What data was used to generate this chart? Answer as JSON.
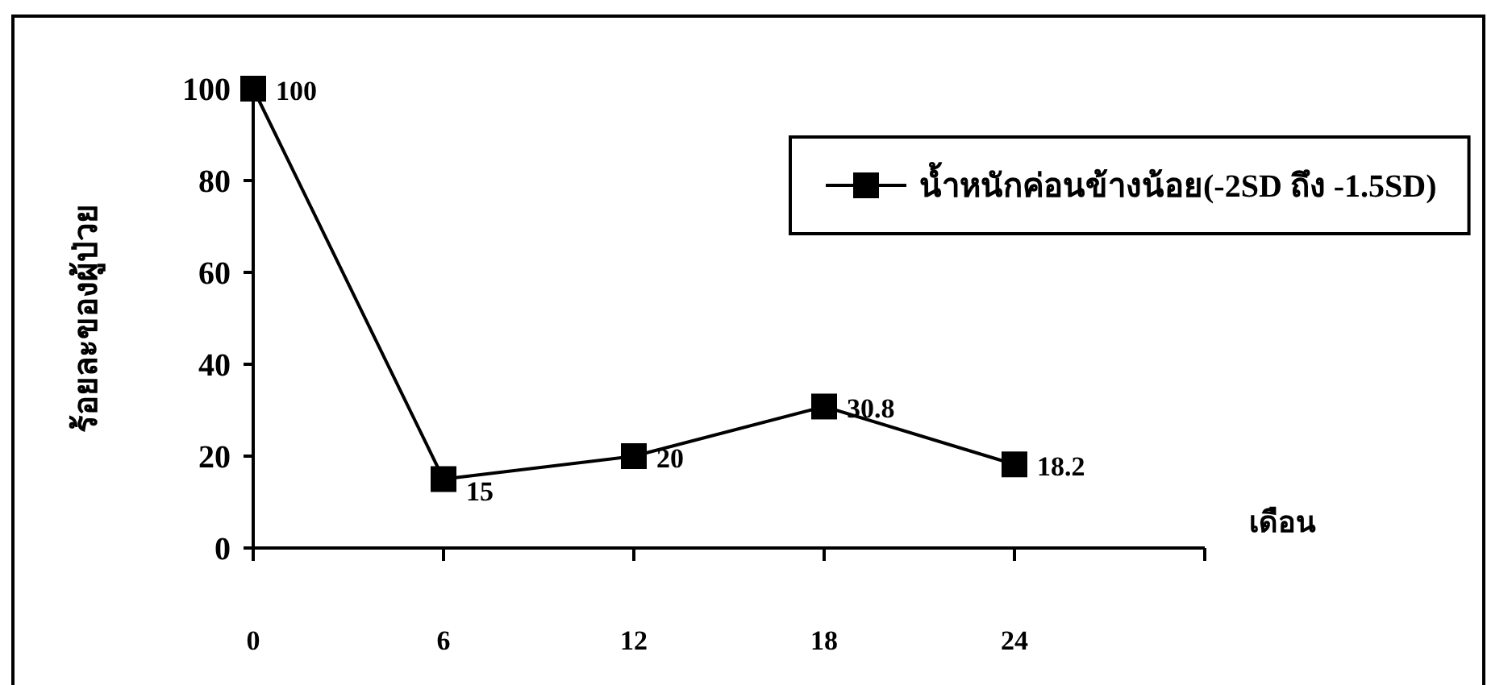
{
  "chart_data": {
    "type": "line",
    "xlabel": "เดือน",
    "ylabel": "ร้อยละของผู้ป่วย",
    "x": [
      0,
      6,
      12,
      18,
      24
    ],
    "series": [
      {
        "name": "น้ำหนักค่อนข้างน้อย(-2SD ถึง -1.5SD)",
        "color": "#000000",
        "values": [
          100,
          15,
          20,
          30.8,
          18.2
        ]
      }
    ],
    "xlim": [
      0,
      30
    ],
    "xticks": [
      0,
      6,
      12,
      18,
      24,
      {
        "value": 30,
        "label": null
      }
    ],
    "ylim": [
      0,
      100
    ],
    "yticks": [
      0,
      20,
      40,
      60,
      80,
      100
    ],
    "marker": "square",
    "line_style": "solid",
    "legend": "top right",
    "data_labels": true,
    "grid": false
  }
}
